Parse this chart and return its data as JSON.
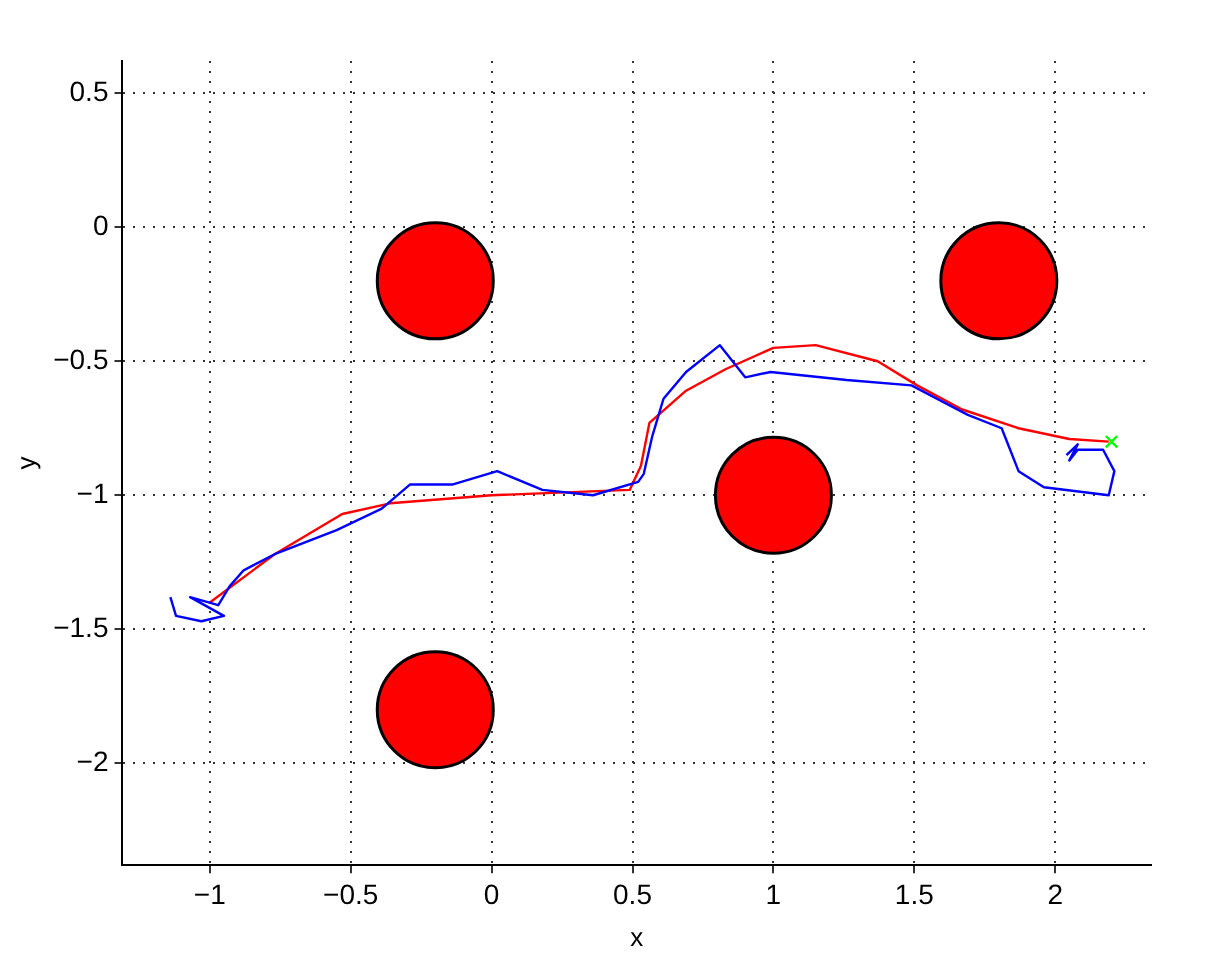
{
  "chart_data": {
    "type": "line",
    "xlabel": "x",
    "ylabel": "y",
    "xlim": [
      -1.31,
      2.34
    ],
    "ylim": [
      -2.38,
      0.62
    ],
    "xticks": [
      {
        "value": -1,
        "label": "−1"
      },
      {
        "value": -0.5,
        "label": "−0.5"
      },
      0,
      0.5,
      1,
      1.5,
      2
    ],
    "yticks": [
      {
        "value": -2,
        "label": "−2"
      },
      {
        "value": -1.5,
        "label": "−1.5"
      },
      {
        "value": -1,
        "label": "−1"
      },
      {
        "value": -0.5,
        "label": "−0.5"
      },
      0,
      0.5
    ],
    "grid": true,
    "legend": false,
    "marker": "none",
    "line_style": "solid",
    "series": [
      {
        "type": "bubble",
        "color": "#ff0000",
        "marker": "circle",
        "x": [
          -0.2,
          1.8,
          1,
          -0.2
        ],
        "values": [
          -0.2,
          -0.2,
          -1,
          -1.8
        ],
        "sizes": [
          1,
          1,
          1,
          1
        ]
      },
      {
        "color": "#0000ff",
        "x": [
          -1.14,
          -1.12,
          -1.03,
          -0.95,
          -1.07,
          -0.97,
          -0.93,
          -0.88,
          -0.77,
          -0.55,
          -0.39,
          -0.29,
          -0.14,
          0.02,
          0.18,
          0.36,
          0.52,
          0.54,
          0.57,
          0.61,
          0.69,
          0.81,
          0.9,
          0.99,
          1.26,
          1.49,
          1.69,
          1.81,
          1.87,
          1.96,
          2.19,
          2.21,
          2.17,
          2.08,
          2.05,
          2.08,
          2.04
        ],
        "values": [
          -1.38,
          -1.45,
          -1.47,
          -1.45,
          -1.38,
          -1.41,
          -1.34,
          -1.28,
          -1.22,
          -1.13,
          -1.05,
          -0.96,
          -0.96,
          -0.91,
          -0.98,
          -1.0,
          -0.95,
          -0.92,
          -0.78,
          -0.64,
          -0.54,
          -0.44,
          -0.56,
          -0.54,
          -0.57,
          -0.59,
          -0.7,
          -0.75,
          -0.91,
          -0.97,
          -1.0,
          -0.91,
          -0.83,
          -0.83,
          -0.87,
          -0.81,
          -0.85
        ]
      },
      {
        "color": "#ff0000",
        "x": [
          -1.0,
          -0.77,
          -0.53,
          -0.36,
          0.0,
          0.49,
          0.53,
          0.56,
          0.69,
          0.83,
          1.0,
          1.15,
          1.37,
          1.51,
          1.67,
          1.87,
          2.05,
          2.19
        ],
        "values": [
          -1.4,
          -1.22,
          -1.07,
          -1.03,
          -1.0,
          -0.98,
          -0.89,
          -0.73,
          -0.61,
          -0.53,
          -0.45,
          -0.44,
          -0.5,
          -0.59,
          -0.68,
          -0.75,
          -0.79,
          -0.8
        ]
      },
      {
        "type": "scatter",
        "color": "#00ff00",
        "marker": "cross",
        "x": [
          2.2
        ],
        "values": [
          -0.8
        ]
      }
    ]
  }
}
